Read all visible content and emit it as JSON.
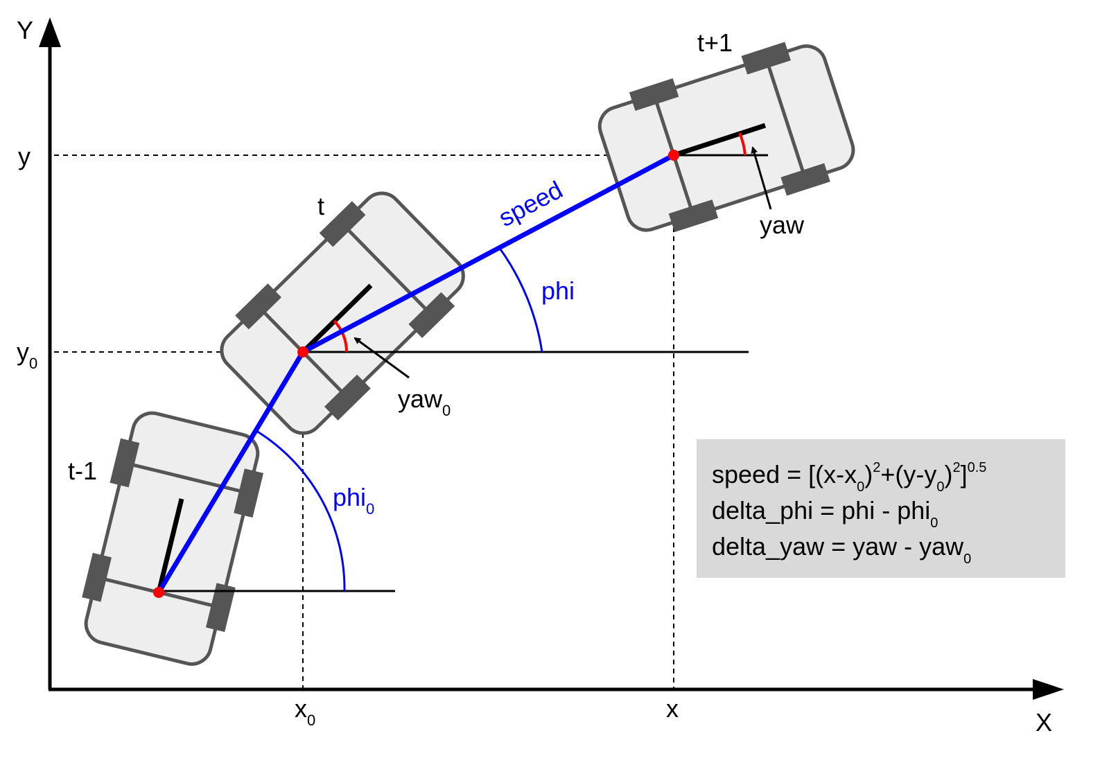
{
  "axes": {
    "x_label": "X",
    "y_label": "Y",
    "x_tick": "x",
    "x0_tick": "x",
    "x0_sub": "0",
    "y_tick": "y",
    "y0_tick": "y",
    "y0_sub": "0"
  },
  "cars": [
    {
      "label": "t-1"
    },
    {
      "label": "t"
    },
    {
      "label": "t+1"
    }
  ],
  "annotations": {
    "speed": "speed",
    "phi": "phi",
    "phi0": "phi",
    "phi0_sub": "0",
    "yaw": "yaw",
    "yaw0": "yaw",
    "yaw0_sub": "0"
  },
  "formula_box": {
    "line1": {
      "a": "speed = [(x-x",
      "s1": "0",
      "b": ")",
      "p1": "2",
      "c": "+(y-y",
      "s2": "0",
      "d": ")",
      "p2": "2",
      "e": "]",
      "p3": "0.5"
    },
    "line2": {
      "a": "delta_phi = phi - phi",
      "s": "0"
    },
    "line3": {
      "a": "delta_yaw = yaw - yaw",
      "s": "0"
    }
  },
  "colors": {
    "path": "#0000ff",
    "point": "#ff0000",
    "yaw_arc": "#ff0000",
    "car_body": "#eeeeee",
    "car_outline": "#555555",
    "box": "#d9d9d9"
  }
}
